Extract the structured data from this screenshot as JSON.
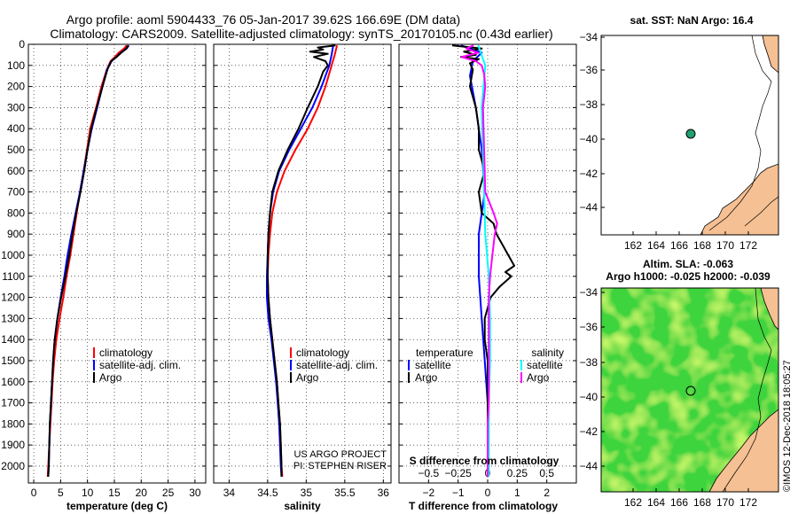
{
  "title": {
    "line1": "Argo profile: aoml 5904433_76 05-Jan-2017 39.62S 166.69E (DM data)",
    "line2": "Climatology: CARS2009. Satellite-adjusted climatology: synTS_20170105.nc (0.43d earlier)"
  },
  "colors": {
    "climatology": "#ff0000",
    "satellite": "#0000ff",
    "argo": "#000000",
    "sal_satellite": "#00ffff",
    "sal_argo": "#ff00ff",
    "land": "#f5c093",
    "float_marker": "#22a070"
  },
  "chart_data": [
    {
      "type": "line",
      "name": "temperature-profile",
      "xlabel": "temperature (deg C)",
      "ylabel": "",
      "xlim": [
        -1,
        32
      ],
      "ylim": [
        2080,
        0
      ],
      "xticks": [
        0,
        5,
        10,
        15,
        20,
        25,
        30
      ],
      "yticks": [
        0,
        100,
        200,
        300,
        400,
        500,
        600,
        700,
        800,
        900,
        1000,
        1100,
        1200,
        1300,
        1400,
        1500,
        1600,
        1700,
        1800,
        1900,
        2000
      ],
      "grid": true,
      "legend": [
        "climatology",
        "satellite-adj. clim.",
        "Argo"
      ],
      "series": [
        {
          "name": "climatology",
          "pressure": [
            5,
            20,
            40,
            60,
            80,
            120,
            200,
            300,
            400,
            500,
            600,
            700,
            800,
            900,
            1000,
            1100,
            1200,
            1300,
            1400,
            1500,
            1600,
            1700,
            1800,
            1900,
            2000,
            2050
          ],
          "values": [
            17.3,
            16.8,
            15.8,
            15.1,
            14.3,
            13.6,
            12.6,
            11.6,
            10.5,
            9.9,
            9.3,
            8.6,
            8.0,
            7.4,
            6.8,
            6.1,
            5.5,
            4.8,
            4.2,
            3.8,
            3.5,
            3.3,
            3.1,
            2.9,
            2.7,
            2.6
          ]
        },
        {
          "name": "satellite-adj. clim.",
          "pressure": [
            5,
            20,
            40,
            60,
            80,
            120,
            200,
            300,
            400,
            500,
            600,
            700,
            800,
            900,
            1000,
            1100,
            1200,
            1300,
            1400,
            1500,
            1600,
            1700,
            1800,
            1900,
            2000,
            2050
          ],
          "values": [
            17.7,
            17.3,
            16.2,
            15.4,
            14.5,
            13.6,
            12.8,
            11.8,
            10.8,
            10.0,
            9.3,
            8.6,
            7.8,
            7.0,
            6.3,
            5.7,
            5.0,
            4.4,
            3.9,
            3.6,
            3.4,
            3.2,
            3.0,
            2.9,
            2.8,
            2.7
          ]
        },
        {
          "name": "Argo",
          "pressure": [
            5,
            20,
            40,
            60,
            80,
            120,
            200,
            300,
            400,
            500,
            600,
            700,
            800,
            900,
            1000,
            1100,
            1200,
            1300,
            1400,
            1500,
            1600,
            1700,
            1800,
            1900,
            2000,
            2050
          ],
          "values": [
            17.6,
            17.2,
            16.3,
            15.4,
            14.4,
            13.7,
            12.8,
            11.7,
            10.7,
            10.0,
            9.4,
            8.7,
            7.9,
            7.2,
            6.6,
            5.9,
            5.1,
            4.4,
            3.9,
            3.6,
            3.4,
            3.2,
            3.0,
            2.9,
            2.8,
            2.7
          ]
        }
      ]
    },
    {
      "type": "line",
      "name": "salinity-profile",
      "xlabel": "salinity",
      "xlim": [
        33.8,
        36.1
      ],
      "ylim": [
        2080,
        0
      ],
      "xticks": [
        34,
        34.5,
        35,
        35.5,
        36
      ],
      "grid": true,
      "legend": [
        "climatology",
        "satellite-adj. clim.",
        "Argo"
      ],
      "series": [
        {
          "name": "climatology",
          "pressure": [
            5,
            50,
            100,
            200,
            300,
            400,
            500,
            600,
            700,
            800,
            900,
            1000,
            1100,
            1200,
            1300,
            1400,
            1500,
            1600,
            1700,
            1800,
            1900,
            2000,
            2050
          ],
          "values": [
            35.4,
            35.37,
            35.33,
            35.25,
            35.15,
            35.02,
            34.86,
            34.72,
            34.62,
            34.56,
            34.53,
            34.51,
            34.5,
            34.51,
            34.53,
            34.56,
            34.59,
            34.62,
            34.64,
            34.66,
            34.67,
            34.68,
            34.69
          ]
        },
        {
          "name": "satellite-adj. clim.",
          "pressure": [
            5,
            50,
            100,
            200,
            300,
            400,
            500,
            600,
            700,
            800,
            900,
            1000,
            1100,
            1200,
            1300,
            1400,
            1500,
            1600,
            1700,
            1800,
            1900,
            2000,
            2050
          ],
          "values": [
            35.35,
            35.33,
            35.3,
            35.2,
            35.08,
            34.93,
            34.78,
            34.65,
            34.57,
            34.53,
            34.51,
            34.5,
            34.49,
            34.49,
            34.51,
            34.55,
            34.58,
            34.61,
            34.63,
            34.65,
            34.66,
            34.67,
            34.68
          ]
        },
        {
          "name": "Argo",
          "pressure": [
            5,
            15,
            25,
            35,
            45,
            60,
            80,
            100,
            130,
            200,
            300,
            400,
            500,
            600,
            700,
            800,
            900,
            1000,
            1100,
            1200,
            1300,
            1400,
            1500,
            1600,
            1700,
            1800,
            1900,
            2000,
            2050
          ],
          "values": [
            35.38,
            35.15,
            35.22,
            35.05,
            35.28,
            35.1,
            35.25,
            35.28,
            35.22,
            35.15,
            35.02,
            34.9,
            34.76,
            34.64,
            34.56,
            34.53,
            34.51,
            34.5,
            34.5,
            34.51,
            34.53,
            34.56,
            34.59,
            34.62,
            34.64,
            34.66,
            34.67,
            34.68,
            34.68
          ]
        }
      ]
    },
    {
      "type": "line",
      "name": "difference-profile",
      "xlabel": "T difference from climatology",
      "xlabel_top": "S difference from climatology",
      "xlim": [
        -3,
        3
      ],
      "ylim": [
        2080,
        0
      ],
      "xticks": [
        -2,
        -1,
        0,
        1,
        2
      ],
      "xticks_top": [
        -0.5,
        -0.25,
        0,
        0.25,
        0.5
      ],
      "grid": true,
      "legend_left_title": "temperature",
      "legend_right_title": "salinity",
      "legend_left": [
        "satellite",
        "Argo"
      ],
      "legend_right": [
        "satellite",
        "Argo"
      ],
      "series": [
        {
          "name": "T satellite",
          "pressure": [
            5,
            40,
            80,
            150,
            300,
            500,
            700,
            900,
            1100,
            1300,
            1500,
            1700,
            1900,
            2050
          ],
          "values": [
            -0.9,
            -0.2,
            -0.5,
            -0.6,
            -0.4,
            -0.2,
            -0.1,
            -0.3,
            -0.3,
            -0.2,
            -0.1,
            0.0,
            0.0,
            0.0
          ]
        },
        {
          "name": "T Argo",
          "pressure": [
            5,
            20,
            35,
            50,
            60,
            70,
            90,
            120,
            200,
            300,
            400,
            500,
            600,
            700,
            800,
            850,
            900,
            950,
            1000,
            1050,
            1080,
            1100,
            1150,
            1200,
            1300,
            1400,
            1500,
            1600,
            1700,
            1800,
            1900,
            2000,
            2050
          ],
          "values": [
            -1.2,
            -0.2,
            -0.8,
            -0.4,
            -0.9,
            -0.3,
            -0.6,
            -0.5,
            -0.6,
            -0.4,
            -0.3,
            -0.3,
            -0.1,
            -0.3,
            -0.2,
            0.2,
            0.3,
            0.5,
            0.7,
            0.9,
            0.6,
            0.8,
            0.4,
            0.1,
            -0.1,
            -0.1,
            0.0,
            0.0,
            0.0,
            0.0,
            0.0,
            0.0,
            0.0
          ]
        },
        {
          "name": "S satellite",
          "pressure": [
            5,
            100,
            300,
            500,
            700,
            900,
            1100,
            1300,
            1500,
            1700,
            1900,
            2050
          ],
          "values": [
            -0.08,
            -0.02,
            -0.05,
            -0.04,
            -0.03,
            -0.02,
            0.01,
            0.02,
            0.02,
            0.01,
            0.01,
            0.01
          ]
        },
        {
          "name": "S Argo",
          "pressure": [
            5,
            20,
            40,
            60,
            80,
            100,
            140,
            200,
            300,
            500,
            700,
            800,
            850,
            900,
            1000,
            1100,
            1200,
            1300,
            1400,
            1500,
            1600,
            1700,
            1800,
            1900,
            2000,
            2050
          ],
          "values": [
            -0.12,
            -0.18,
            -0.08,
            -0.22,
            -0.1,
            -0.05,
            -0.03,
            -0.02,
            -0.04,
            -0.03,
            -0.02,
            0.05,
            0.08,
            0.06,
            0.04,
            0.02,
            0.01,
            0.01,
            0.01,
            0.01,
            0.01,
            0.01,
            0.0,
            0.0,
            0.0,
            0.0
          ]
        }
      ]
    }
  ],
  "maps": {
    "sst": {
      "title": "sat. SST: NaN Argo: 16.4",
      "xticks": [
        "162",
        "164",
        "166",
        "168",
        "170",
        "172"
      ],
      "yticks": [
        "-34",
        "-36",
        "-38",
        "-40",
        "-42",
        "-44"
      ]
    },
    "sla": {
      "title1": "Altim. SLA: -0.063",
      "title2": "Argo h1000: -0.025 h2000: -0.039",
      "xticks": [
        "162",
        "164",
        "166",
        "168",
        "170",
        "172"
      ],
      "yticks": [
        "-34",
        "-36",
        "-38",
        "-40",
        "-42",
        "-44"
      ]
    }
  },
  "annotations": {
    "project1": "US ARGO PROJECT",
    "project2": "PI: STEPHEN RISER",
    "credit": "©IMOS 12-Dec-2018 18:05:27"
  }
}
